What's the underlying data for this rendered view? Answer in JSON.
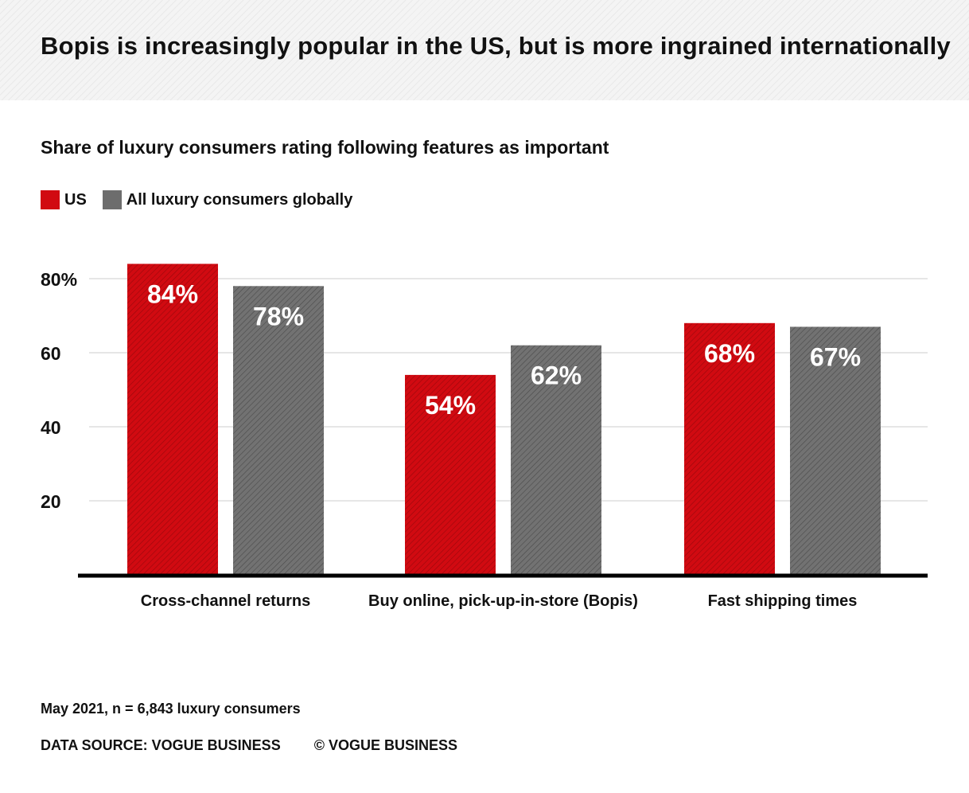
{
  "title": "Bopis is increasingly popular in the US, but is more ingrained internationally",
  "footer": {
    "note": "May 2021, n = 6,843 luxury consumers",
    "source": "DATA SOURCE: VOGUE BUSINESS",
    "copyright": "© VOGUE BUSINESS"
  },
  "colors": {
    "us": "#d10a11",
    "global": "#6d6d6d",
    "header_bg": "#f4f4f4"
  },
  "chart_data": {
    "type": "bar",
    "title": "Share of luxury consumers rating following features as important",
    "categories": [
      "Cross-channel returns",
      "Buy online, pick-up-in-store (Bopis)",
      "Fast shipping times"
    ],
    "series": [
      {
        "name": "US",
        "values": [
          84,
          54,
          68
        ],
        "labels": [
          "84%",
          "54%",
          "68%"
        ]
      },
      {
        "name": "All luxury consumers globally",
        "values": [
          78,
          62,
          67
        ],
        "labels": [
          "78%",
          "62%",
          "67%"
        ]
      }
    ],
    "yticks": [
      20,
      40,
      60,
      80
    ],
    "ytick_labels": [
      "20",
      "40",
      "60",
      "80%"
    ],
    "ylim": [
      0,
      90
    ],
    "grid": true,
    "legend_position": "top-left"
  }
}
